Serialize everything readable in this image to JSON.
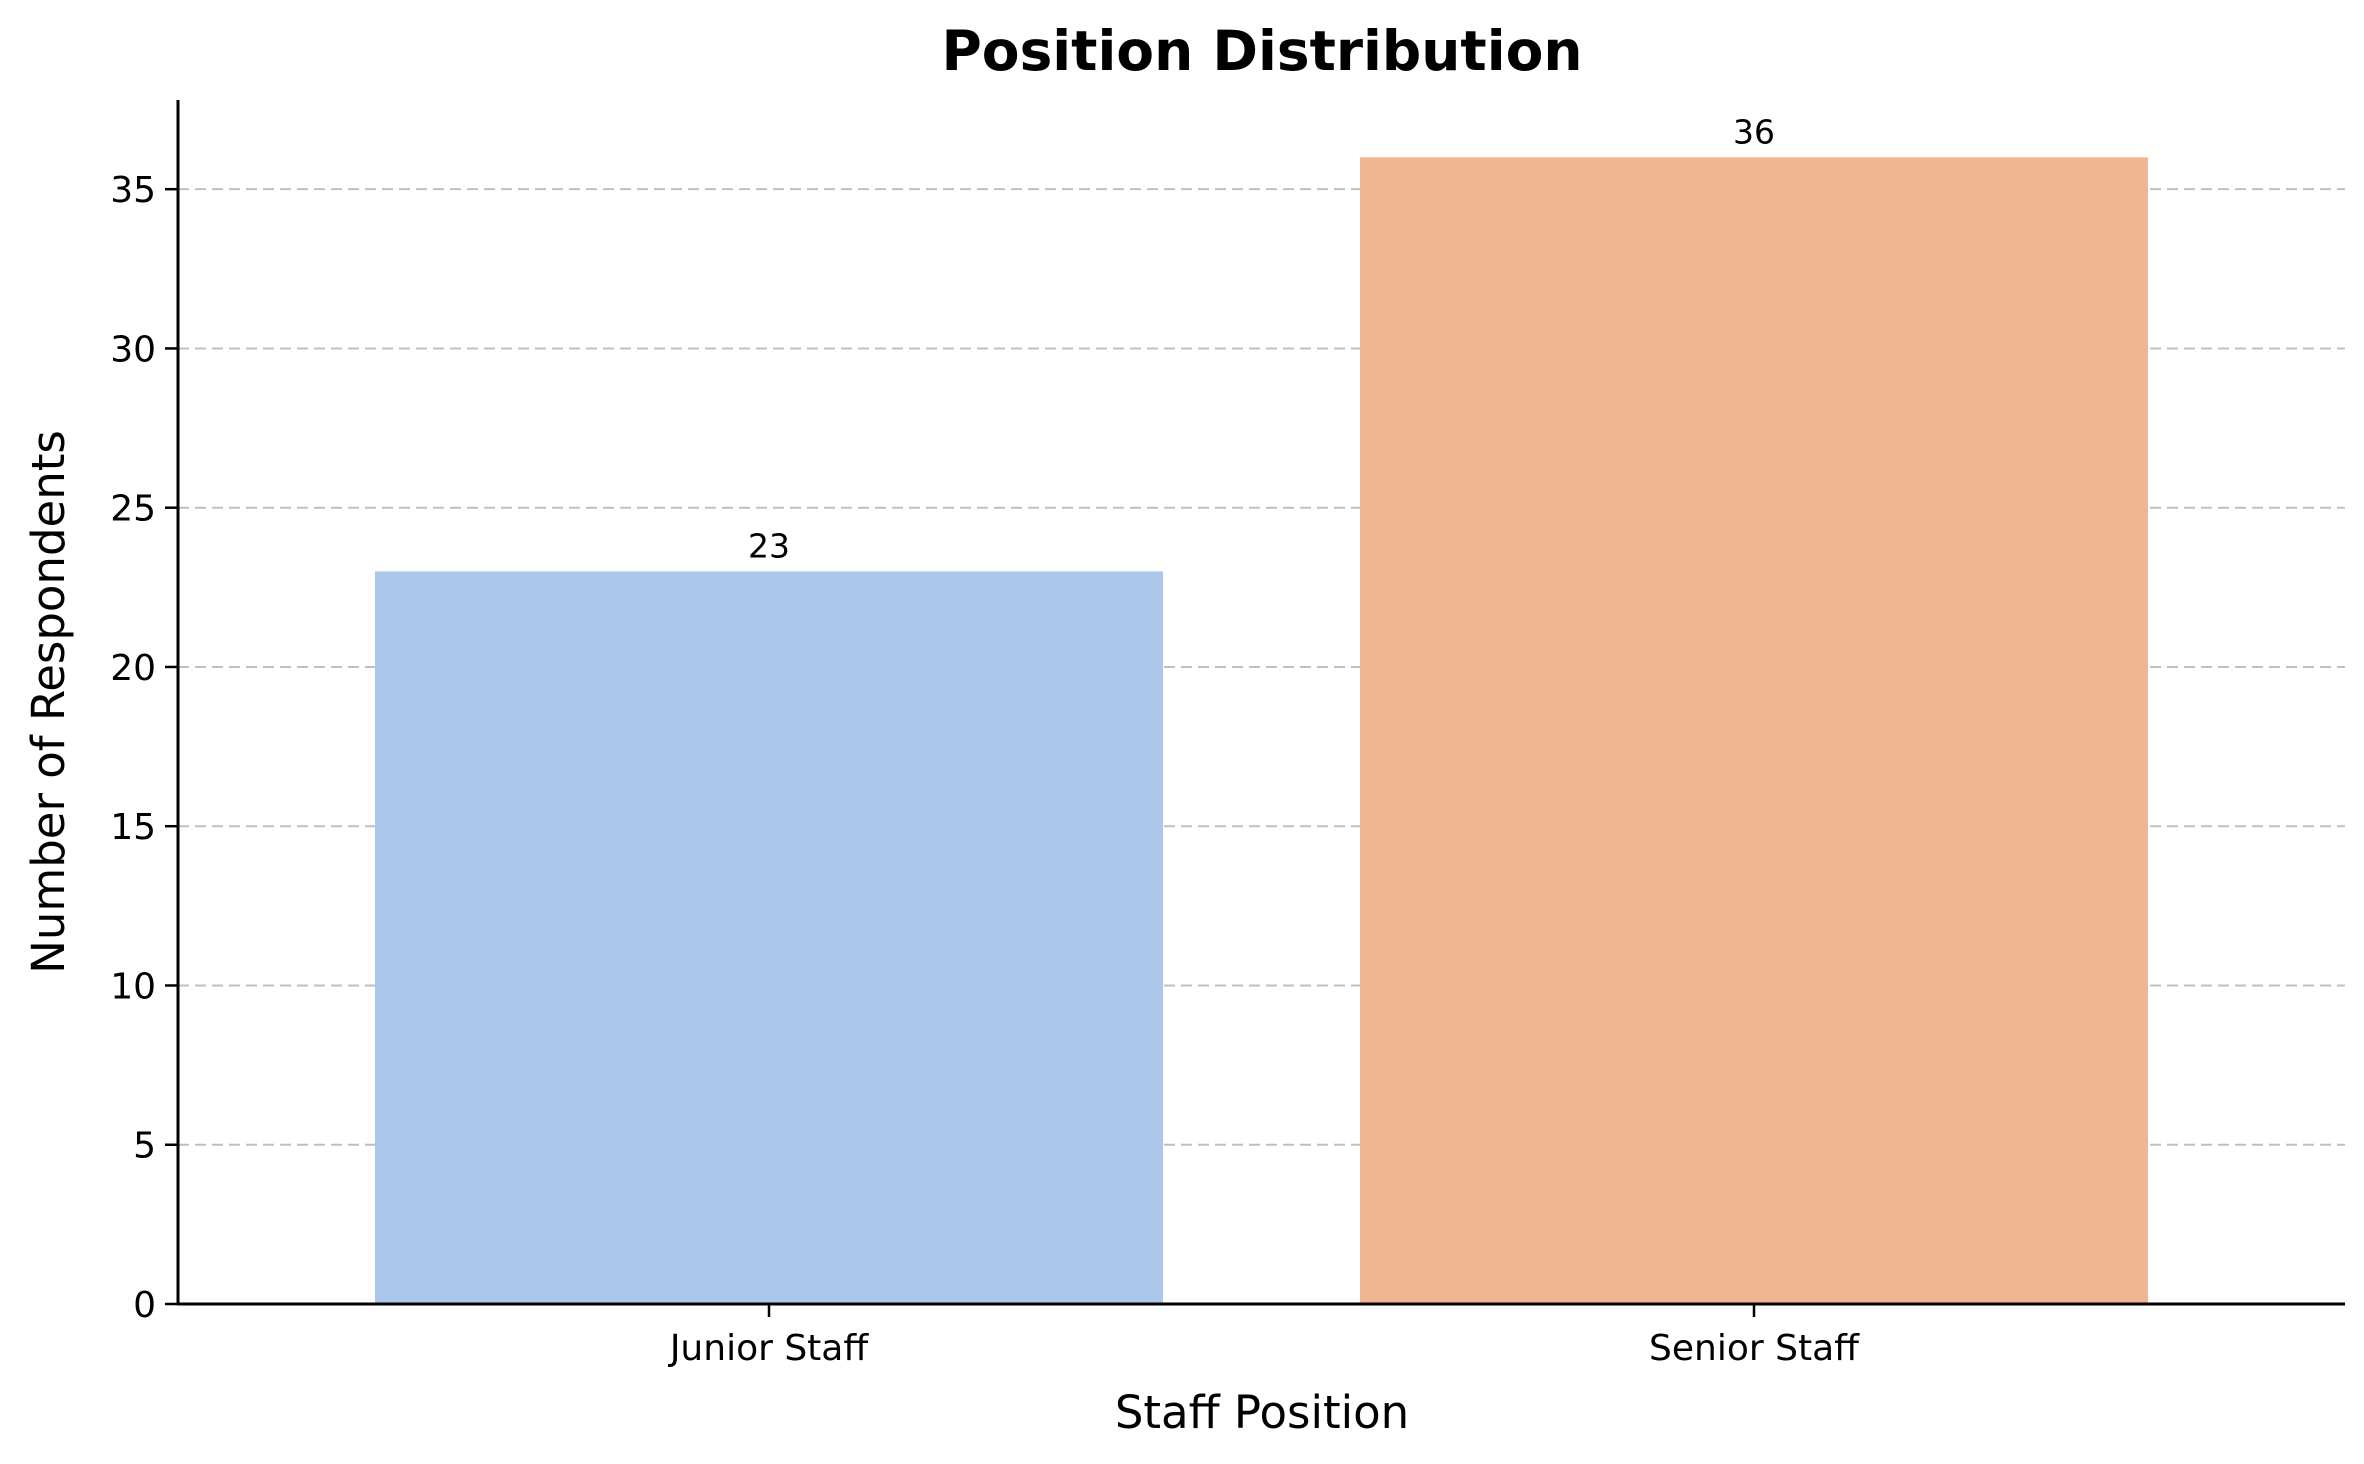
{
  "chart_data": {
    "type": "bar",
    "title": "Position Distribution",
    "xlabel": "Staff Position",
    "ylabel": "Number of Respondents",
    "categories": [
      "Junior Staff",
      "Senior Staff"
    ],
    "values": [
      23,
      36
    ],
    "colors": [
      "#abc8ea",
      "#f0b692"
    ],
    "ylim": [
      0,
      37.8
    ],
    "yticks": [
      0,
      5,
      10,
      15,
      20,
      25,
      30,
      35
    ],
    "grid": "y-dashed",
    "legend": "none",
    "data_labels": [
      "23",
      "36"
    ]
  }
}
